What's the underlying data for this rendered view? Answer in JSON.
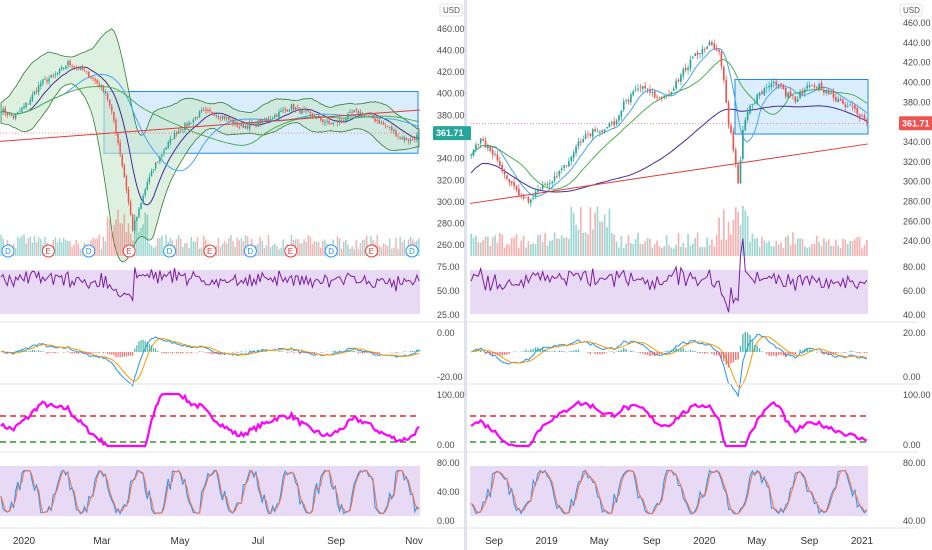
{
  "currency": "USD",
  "last_price_label": "361.71",
  "colors": {
    "up": "#26a69a",
    "down": "#ef5350",
    "box_fill": "#bbdefb",
    "box_stroke": "#1e88e5",
    "rsi_line": "#7b1fa2",
    "rsi_band": "#e8d9f5",
    "macd_line": "#2196f3",
    "signal_line": "#ff9800",
    "cci_line": "#ff00ff",
    "upper_level": "#e00000",
    "lower_level": "#008000",
    "stoch_k": "#2196f3",
    "stoch_d": "#ff7043",
    "ma_purple": "#3f2d9c",
    "ma_red": "#e53935",
    "ma_green": "#4caf50",
    "ma_blue": "#42a5f5"
  },
  "chart_data": [
    {
      "type": "candlestick",
      "panel": "left-daily",
      "x_ticks": [
        "2020",
        "Mar",
        "May",
        "Jul",
        "Sep",
        "Nov"
      ],
      "price_ylim": [
        250,
        470
      ],
      "price_ticks": [
        "460.00",
        "440.00",
        "420.00",
        "400.00",
        "380.00",
        "360.00",
        "340.00",
        "320.00",
        "300.00",
        "280.00",
        "260.00"
      ],
      "rectangle_range": [
        345,
        402
      ],
      "close_path": [
        [
          0,
          385
        ],
        [
          6,
          378
        ],
        [
          13,
          392
        ],
        [
          19,
          410
        ],
        [
          26,
          417
        ],
        [
          32,
          428
        ],
        [
          39,
          422
        ],
        [
          45,
          412
        ],
        [
          50,
          402
        ],
        [
          54,
          375
        ],
        [
          57,
          345
        ],
        [
          60,
          312
        ],
        [
          63,
          275
        ],
        [
          66,
          292
        ],
        [
          70,
          318
        ],
        [
          74,
          335
        ],
        [
          78,
          348
        ],
        [
          84,
          365
        ],
        [
          90,
          373
        ],
        [
          96,
          383
        ],
        [
          102,
          382
        ],
        [
          108,
          377
        ],
        [
          114,
          370
        ],
        [
          120,
          371
        ],
        [
          126,
          375
        ],
        [
          133,
          382
        ],
        [
          139,
          388
        ],
        [
          145,
          383
        ],
        [
          151,
          378
        ],
        [
          157,
          372
        ],
        [
          163,
          375
        ],
        [
          169,
          383
        ],
        [
          175,
          381
        ],
        [
          181,
          374
        ],
        [
          187,
          367
        ],
        [
          191,
          360
        ],
        [
          196,
          357
        ],
        [
          200,
          362
        ]
      ],
      "events": [
        "D",
        "E",
        "D",
        "E",
        "D",
        "E",
        "D",
        "E",
        "D",
        "E",
        "D"
      ],
      "rsi_ticks": [
        "75.00",
        "50.00",
        "25.00"
      ],
      "macd_ticks": [
        "0.00",
        "-20.00"
      ],
      "cci_ticks": [
        "100.00",
        "0.00"
      ],
      "stoch_ticks": [
        "80.00",
        "40.00",
        "0.00"
      ]
    },
    {
      "type": "candlestick",
      "panel": "right-weekly",
      "x_ticks": [
        "Sep",
        "2019",
        "May",
        "Sep",
        "2020",
        "May",
        "Sep",
        "2021"
      ],
      "price_ylim": [
        225,
        465
      ],
      "price_ticks": [
        "460.00",
        "440.00",
        "420.00",
        "400.00",
        "380.00",
        "340.00",
        "320.00",
        "300.00",
        "280.00",
        "260.00",
        "240.00"
      ],
      "rectangle_range": [
        348,
        403
      ],
      "close_path": [
        [
          0,
          330
        ],
        [
          4,
          342
        ],
        [
          8,
          333
        ],
        [
          12,
          318
        ],
        [
          16,
          300
        ],
        [
          20,
          288
        ],
        [
          24,
          282
        ],
        [
          28,
          292
        ],
        [
          32,
          300
        ],
        [
          36,
          305
        ],
        [
          40,
          318
        ],
        [
          44,
          336
        ],
        [
          48,
          346
        ],
        [
          52,
          352
        ],
        [
          56,
          352
        ],
        [
          60,
          360
        ],
        [
          64,
          378
        ],
        [
          68,
          388
        ],
        [
          72,
          395
        ],
        [
          76,
          388
        ],
        [
          80,
          385
        ],
        [
          84,
          392
        ],
        [
          88,
          408
        ],
        [
          92,
          420
        ],
        [
          96,
          432
        ],
        [
          100,
          440
        ],
        [
          104,
          432
        ],
        [
          106,
          400
        ],
        [
          108,
          360
        ],
        [
          110,
          335
        ],
        [
          112,
          300
        ],
        [
          114,
          350
        ],
        [
          116,
          372
        ],
        [
          120,
          385
        ],
        [
          124,
          395
        ],
        [
          128,
          400
        ],
        [
          132,
          388
        ],
        [
          136,
          382
        ],
        [
          140,
          392
        ],
        [
          144,
          398
        ],
        [
          148,
          393
        ],
        [
          152,
          386
        ],
        [
          156,
          380
        ],
        [
          160,
          374
        ],
        [
          164,
          364
        ],
        [
          166,
          361.71
        ]
      ],
      "rsi_ticks": [
        "80.00",
        "60.00",
        "40.00"
      ],
      "macd_ticks": [
        "20.00",
        "0.00"
      ],
      "cci_ticks": [
        "100.00",
        "0.00"
      ],
      "stoch_ticks": [
        "80.00",
        "40.00"
      ]
    }
  ]
}
